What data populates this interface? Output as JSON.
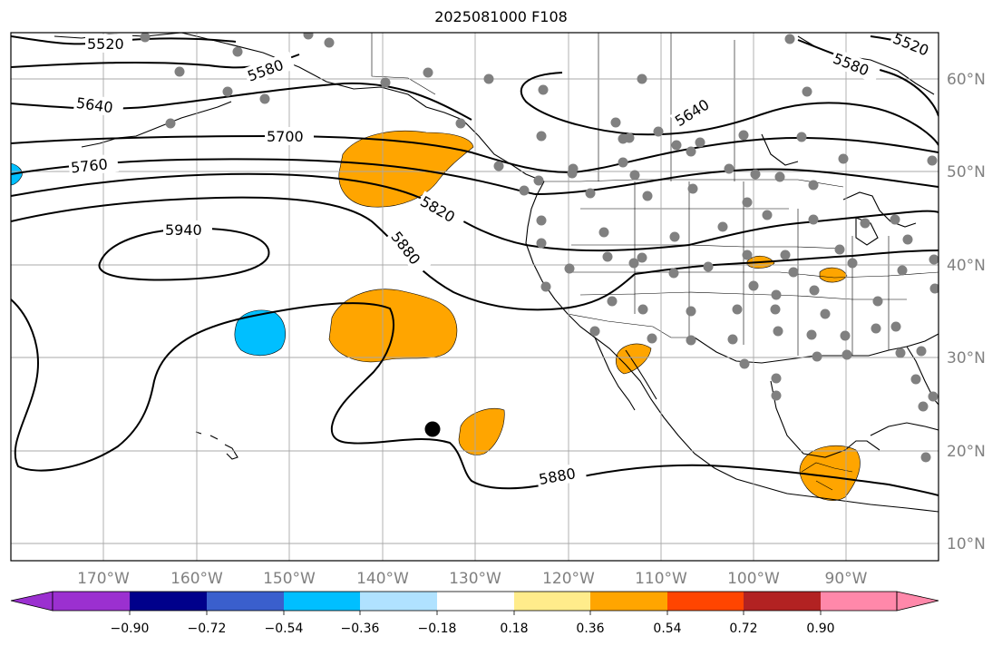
{
  "title": "2025081000 F108",
  "lon_labels": [
    "170°W",
    "160°W",
    "150°W",
    "140°W",
    "130°W",
    "120°W",
    "110°W",
    "100°W",
    "90°W"
  ],
  "lat_labels": [
    "60°N",
    "50°N",
    "40°N",
    "30°N",
    "20°N",
    "10°N"
  ],
  "contour_labels": [
    "5520",
    "5580",
    "5640",
    "5700",
    "5760",
    "5820",
    "5880",
    "5940",
    "5520",
    "5580",
    "5640",
    "5880"
  ],
  "colorbar": {
    "tick_labels": [
      "−0.90",
      "−0.72",
      "−0.54",
      "−0.36",
      "−0.18",
      "0.18",
      "0.36",
      "0.54",
      "0.72",
      "0.90"
    ],
    "colors": [
      "#9b30d0",
      "#00008b",
      "#3a5fcd",
      "#00bfff",
      "#b0e2ff",
      "#ffffff",
      "#ffec8b",
      "#ffa500",
      "#ff4500",
      "#b22222",
      "#ff88aa"
    ]
  },
  "accent_colors": {
    "positive_anomaly": "#ffa500",
    "negative_anomaly": "#00bfff",
    "station": "#808080"
  }
}
